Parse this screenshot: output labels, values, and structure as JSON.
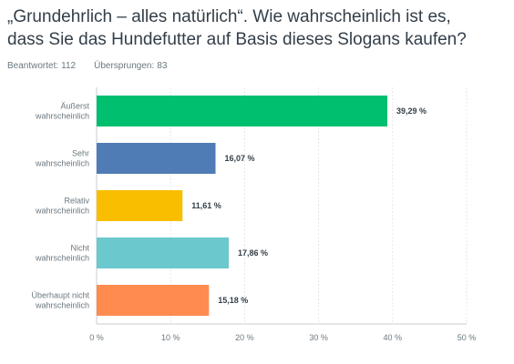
{
  "question": {
    "line1": "„Grundehrlich – alles natürlich“. Wie wahrscheinlich ist es,",
    "line2": "dass Sie das Hundefutter auf Basis dieses Slogans kaufen?"
  },
  "stats": {
    "answered_label": "Beantwortet:",
    "answered_value": "112",
    "skipped_label": "Übersprungen:",
    "skipped_value": "83"
  },
  "chart_data": {
    "type": "bar",
    "orientation": "horizontal",
    "categories": [
      [
        "Äußerst",
        "wahrscheinlich"
      ],
      [
        "Sehr",
        "wahrscheinlich"
      ],
      [
        "Relativ",
        "wahrscheinlich"
      ],
      [
        "Nicht",
        "wahrscheinlich"
      ],
      [
        "Überhaupt nicht",
        "wahrscheinlich"
      ]
    ],
    "values": [
      39.29,
      16.07,
      11.61,
      17.86,
      15.18
    ],
    "value_labels": [
      "39,29 %",
      "16,07 %",
      "11,61 %",
      "17,86 %",
      "15,18 %"
    ],
    "colors": [
      "#00bf6f",
      "#507cb6",
      "#f9be00",
      "#6bc8cd",
      "#ff8b4f"
    ],
    "xlim": [
      0,
      50
    ],
    "xticks": [
      0,
      10,
      20,
      30,
      40,
      50
    ],
    "xtick_labels": [
      "0 %",
      "10 %",
      "20 %",
      "30 %",
      "40 %",
      "50 %"
    ],
    "grid": true,
    "legend": "none"
  }
}
